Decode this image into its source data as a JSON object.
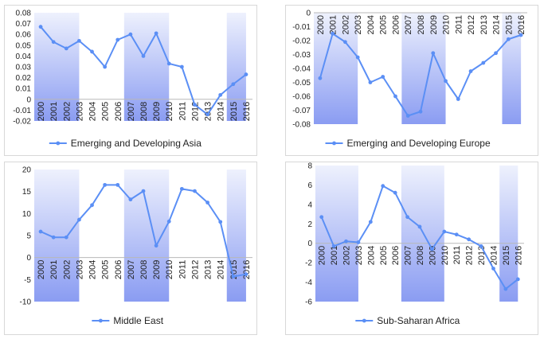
{
  "style": {
    "line_color": "#5B8FF5",
    "band_color_solid": "#8A9CF2",
    "band_color_fade": "#EEF1FD",
    "zero_line": "#b8b8b8",
    "border": "#d8d8d8"
  },
  "chart_data": [
    {
      "type": "line",
      "x": [
        "2000",
        "2001",
        "2002",
        "2003",
        "2004",
        "2005",
        "2006",
        "2007",
        "2008",
        "2009",
        "2010",
        "2011",
        "2012",
        "2013",
        "2014",
        "2015",
        "2016"
      ],
      "series": [
        {
          "name": "Emerging and Developing Asia",
          "values": [
            0.067,
            0.053,
            0.047,
            0.054,
            0.044,
            0.03,
            0.055,
            0.06,
            0.04,
            0.061,
            0.033,
            0.03,
            -0.005,
            -0.014,
            0.004,
            0.014,
            0.023
          ]
        }
      ],
      "ylim": [
        -0.02,
        0.08
      ],
      "yticks": [
        -0.02,
        -0.01,
        0,
        0.01,
        0.02,
        0.03,
        0.04,
        0.05,
        0.06,
        0.07,
        0.08
      ],
      "ytick_labels": [
        "-0.02",
        "-0.01",
        "0",
        "0.01",
        "0.02",
        "0.03",
        "0.04",
        "0.05",
        "0.06",
        "0.07",
        "0.08"
      ],
      "shaded_periods": [
        [
          "2000",
          "2003"
        ],
        [
          "2007",
          "2010"
        ],
        [
          "2015",
          "2016"
        ]
      ],
      "grid": false,
      "legend": "bottom"
    },
    {
      "type": "line",
      "x": [
        "2000",
        "2001",
        "2002",
        "2003",
        "2004",
        "2005",
        "2006",
        "2007",
        "2008",
        "2009",
        "2010",
        "2011",
        "2012",
        "2013",
        "2014",
        "2015",
        "2016"
      ],
      "series": [
        {
          "name": "Emerging and Developing Europe",
          "values": [
            -0.047,
            -0.015,
            -0.021,
            -0.032,
            -0.05,
            -0.046,
            -0.06,
            -0.074,
            -0.071,
            -0.029,
            -0.049,
            -0.062,
            -0.042,
            -0.036,
            -0.029,
            -0.019,
            -0.016
          ]
        }
      ],
      "ylim": [
        -0.08,
        0
      ],
      "yticks": [
        -0.08,
        -0.07,
        -0.06,
        -0.05,
        -0.04,
        -0.03,
        -0.02,
        -0.01,
        0
      ],
      "ytick_labels": [
        "-0.08",
        "-0.07",
        "-0.06",
        "-0.05",
        "-0.04",
        "-0.03",
        "-0.02",
        "-0.01",
        "0"
      ],
      "shaded_periods": [
        [
          "2000",
          "2003"
        ],
        [
          "2007",
          "2010"
        ],
        [
          "2015",
          "2016"
        ]
      ],
      "grid": false,
      "legend": "bottom"
    },
    {
      "type": "line",
      "x": [
        "2000",
        "2001",
        "2002",
        "2003",
        "2004",
        "2005",
        "2006",
        "2007",
        "2008",
        "2009",
        "2010",
        "2011",
        "2012",
        "2013",
        "2014",
        "2015",
        "2016"
      ],
      "series": [
        {
          "name": "Middle East",
          "values": [
            5.9,
            4.6,
            4.6,
            8.6,
            11.9,
            16.5,
            16.5,
            13.2,
            15.1,
            2.7,
            8.2,
            15.6,
            15.1,
            12.5,
            8.1,
            -4.3,
            -3.8
          ]
        }
      ],
      "ylim": [
        -10,
        20
      ],
      "yticks": [
        -10,
        -5,
        0,
        5,
        10,
        15,
        20
      ],
      "ytick_labels": [
        "-10",
        "-5",
        "0",
        "5",
        "10",
        "15",
        "20"
      ],
      "shaded_periods": [
        [
          "2000",
          "2003"
        ],
        [
          "2007",
          "2010"
        ],
        [
          "2015",
          "2016"
        ]
      ],
      "grid": false,
      "legend": "bottom"
    },
    {
      "type": "line",
      "x": [
        "2000",
        "2001",
        "2002",
        "2003",
        "2004",
        "2005",
        "2006",
        "2007",
        "2008",
        "2009",
        "2010",
        "2011",
        "2012",
        "2013",
        "2014",
        "2015",
        "2016"
      ],
      "series": [
        {
          "name": "Sub-Saharan Africa",
          "values": [
            2.7,
            -0.3,
            0.2,
            0.1,
            2.2,
            5.9,
            5.2,
            2.7,
            1.7,
            -0.6,
            1.2,
            0.9,
            0.4,
            -0.3,
            -2.6,
            -4.7,
            -3.7
          ]
        }
      ],
      "ylim": [
        -6,
        8
      ],
      "yticks": [
        -6,
        -4,
        -2,
        0,
        2,
        4,
        6,
        8
      ],
      "ytick_labels": [
        "-6",
        "-4",
        "-2",
        "0",
        "2",
        "4",
        "6",
        "8"
      ],
      "shaded_periods": [
        [
          "2000",
          "2003"
        ],
        [
          "2007",
          "2010"
        ],
        [
          "2015",
          "2016"
        ]
      ],
      "grid": false,
      "legend": "bottom"
    }
  ]
}
